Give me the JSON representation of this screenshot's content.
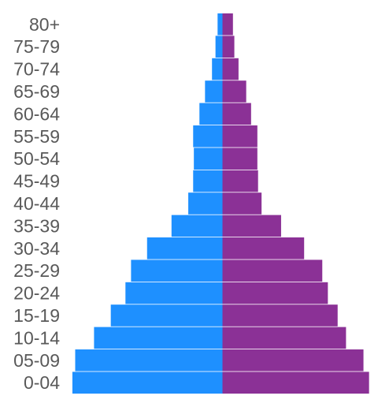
{
  "chart_data": {
    "type": "bar",
    "orientation": "horizontal",
    "layout": "population-pyramid",
    "categories": [
      "80+",
      "75-79",
      "70-74",
      "65-69",
      "60-64",
      "55-59",
      "50-54",
      "45-49",
      "40-44",
      "35-39",
      "30-34",
      "25-29",
      "20-24",
      "15-19",
      "10-14",
      "05-09",
      "0-04"
    ],
    "series": [
      {
        "color": "#1e90ff",
        "side": "left",
        "values": [
          0.7,
          1.0,
          1.5,
          2.5,
          3.3,
          4.2,
          4.1,
          4.2,
          4.9,
          7.3,
          10.8,
          13.1,
          13.9,
          16.0,
          18.4,
          21.1,
          21.5
        ]
      },
      {
        "color": "#8b3196",
        "side": "right",
        "values": [
          1.5,
          1.7,
          2.3,
          3.4,
          4.1,
          5.0,
          5.0,
          5.1,
          5.6,
          8.4,
          11.7,
          14.3,
          15.1,
          16.5,
          17.7,
          20.2,
          21.0
        ]
      }
    ],
    "xlim": [
      -22,
      22
    ],
    "title": "",
    "xlabel": "",
    "ylabel": "",
    "grid": false,
    "legend": "none"
  }
}
